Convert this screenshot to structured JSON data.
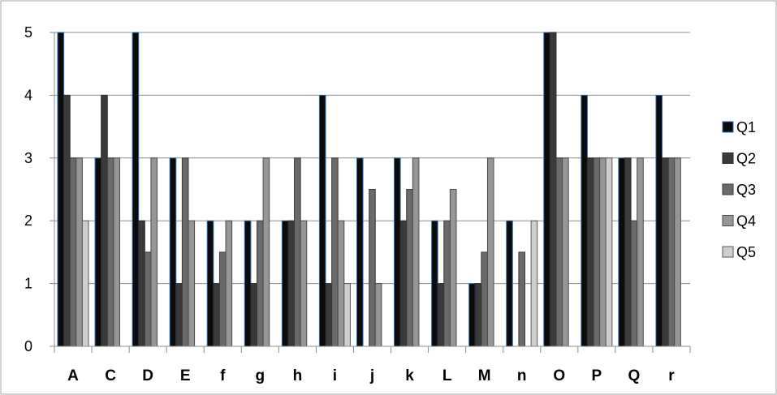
{
  "chart_data": {
    "type": "bar",
    "title": "",
    "xlabel": "",
    "ylabel": "",
    "ylim": [
      0,
      5
    ],
    "yticks": [
      0,
      1,
      2,
      3,
      4,
      5
    ],
    "grid": true,
    "legend_position": "right",
    "categories": [
      "A",
      "C",
      "D",
      "E",
      "f",
      "g",
      "h",
      "i",
      "j",
      "k",
      "L",
      "M",
      "n",
      "O",
      "P",
      "Q",
      "r"
    ],
    "series": [
      {
        "name": "Q1",
        "color": "#0b0b0b",
        "edge": "#2f6fb8",
        "values": [
          5,
          3,
          5,
          3,
          2,
          2,
          2,
          4,
          3,
          3,
          2,
          1,
          2,
          5,
          4,
          3,
          4
        ]
      },
      {
        "name": "Q2",
        "color": "#3a3a3a",
        "edge": "#2a2a2a",
        "values": [
          4,
          4,
          2,
          1,
          1,
          1,
          2,
          1,
          0,
          2,
          1,
          1,
          0,
          5,
          3,
          3,
          3
        ]
      },
      {
        "name": "Q3",
        "color": "#6a6a6a",
        "edge": "#3a3a3a",
        "values": [
          3,
          3,
          1.5,
          3,
          1.5,
          2,
          3,
          3,
          2.5,
          2.5,
          2,
          1.5,
          1.5,
          3,
          3,
          2,
          3
        ]
      },
      {
        "name": "Q4",
        "color": "#969696",
        "edge": "#4a4a4a",
        "values": [
          3,
          3,
          3,
          2,
          2,
          3,
          2,
          2,
          1,
          3,
          2.5,
          3,
          0,
          3,
          3,
          3,
          3
        ]
      },
      {
        "name": "Q5",
        "color": "#cfcfcf",
        "edge": "#5a5a5a",
        "values": [
          2,
          0,
          0,
          0,
          0,
          0,
          0,
          1,
          0,
          0,
          0,
          0,
          2,
          0,
          3,
          0,
          0
        ]
      }
    ]
  }
}
